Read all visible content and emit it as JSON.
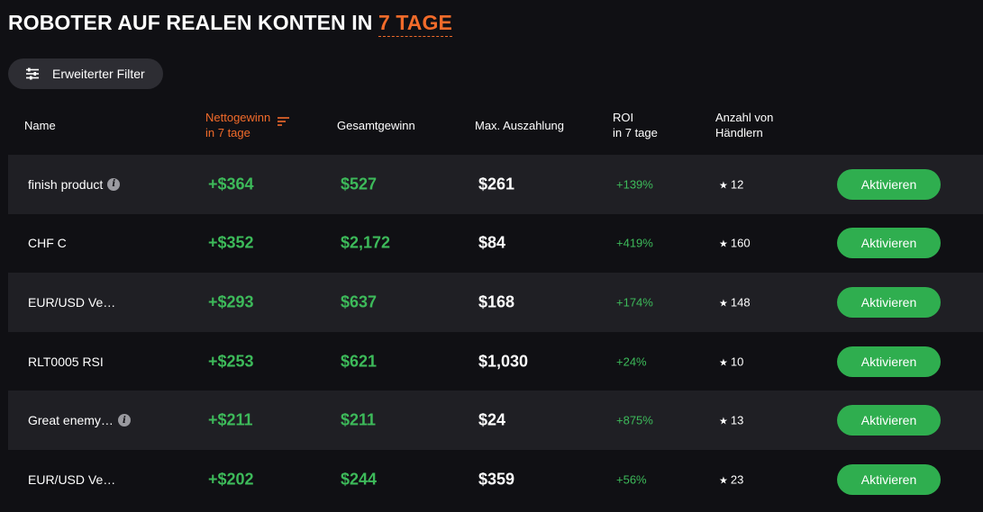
{
  "title": {
    "prefix": "ROBOTER AUF REALEN KONTEN IN",
    "period": "7 TAGE"
  },
  "filter": {
    "label": "Erweiterter Filter",
    "icon": "sliders-icon"
  },
  "colors": {
    "accent": "#f26b2a",
    "positive": "#3dba5a",
    "button": "#2fae4f",
    "background": "#101014",
    "row_shade": "#1f1f24"
  },
  "table": {
    "headers": {
      "name": "Name",
      "net_line1": "Nettogewinn",
      "net_line2": "in 7 tage",
      "gross": "Gesamtgewinn",
      "maxpay": "Max. Auszahlung",
      "roi_line1": "ROI",
      "roi_line2": "in 7 tage",
      "traders_line1": "Anzahl von",
      "traders_line2": "Händlern"
    },
    "rows": [
      {
        "name": "finish product",
        "info": true,
        "net": "+$364",
        "gross": "$527",
        "maxpay": "$261",
        "roi": "+139%",
        "traders": "12",
        "action": "Aktivieren"
      },
      {
        "name": "CHF C",
        "info": false,
        "net": "+$352",
        "gross": "$2,172",
        "maxpay": "$84",
        "roi": "+419%",
        "traders": "160",
        "action": "Aktivieren"
      },
      {
        "name": "EUR/USD Ve…",
        "info": false,
        "net": "+$293",
        "gross": "$637",
        "maxpay": "$168",
        "roi": "+174%",
        "traders": "148",
        "action": "Aktivieren"
      },
      {
        "name": "RLT0005 RSI",
        "info": false,
        "net": "+$253",
        "gross": "$621",
        "maxpay": "$1,030",
        "roi": "+24%",
        "traders": "10",
        "action": "Aktivieren"
      },
      {
        "name": "Great enemy…",
        "info": true,
        "net": "+$211",
        "gross": "$211",
        "maxpay": "$24",
        "roi": "+875%",
        "traders": "13",
        "action": "Aktivieren"
      },
      {
        "name": "EUR/USD Ve…",
        "info": false,
        "net": "+$202",
        "gross": "$244",
        "maxpay": "$359",
        "roi": "+56%",
        "traders": "23",
        "action": "Aktivieren"
      }
    ]
  }
}
